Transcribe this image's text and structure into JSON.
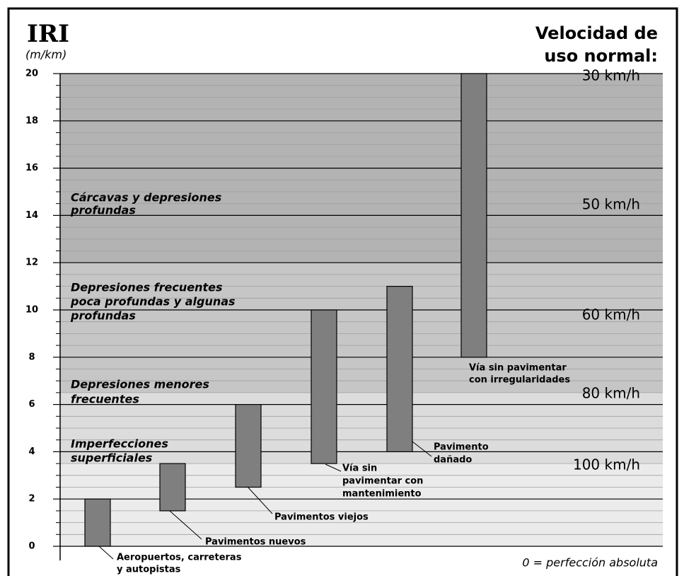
{
  "chart_data": {
    "type": "range_bar",
    "title": "IRI",
    "y_label": "(m/km)",
    "right_title": [
      "Velocidad de",
      "uso normal:"
    ],
    "footnote": "0 = perfección absoluta",
    "categories": [
      [
        "Aeropuertos, carreteras",
        "y autopistas"
      ],
      [
        "Pavimentos nuevos"
      ],
      [
        "Pavimentos viejos"
      ],
      [
        "Vía sin",
        "pavimentar  con",
        "mantenimiento"
      ],
      [
        "Pavimento",
        "dañado"
      ],
      [
        "Vía sin pavimentar",
        "con irregularidades"
      ]
    ],
    "lows": [
      0,
      1.5,
      2.5,
      3.5,
      4,
      8
    ],
    "highs": [
      2,
      3.5,
      6,
      10,
      11,
      20
    ],
    "color": "#7f7f7f",
    "ylim": [
      0,
      20
    ],
    "yticks": [
      0,
      2,
      4,
      6,
      8,
      10,
      12,
      14,
      16,
      18,
      20
    ],
    "yminorticks": [
      0.5,
      1,
      1.5,
      2.5,
      3,
      3.5,
      4.5,
      5,
      5.5,
      6.5,
      7,
      7.5,
      8.5,
      9,
      9.5,
      10.5,
      11,
      11.5,
      12.5,
      13,
      13.5,
      14.5,
      15,
      15.5,
      16.5,
      17,
      17.5,
      18.5,
      19,
      19.5
    ],
    "grid": true,
    "zones": [
      {
        "from": 0,
        "to": 3.5,
        "color": "#ebebeb",
        "label": [
          "Imperfecciones",
          "superficiales"
        ],
        "speed": "100 km/h"
      },
      {
        "from": 3.5,
        "to": 6.5,
        "color": "#dcdcdc",
        "label": [
          "Depresiones menores",
          "frecuentes"
        ],
        "speed": "80 km/h"
      },
      {
        "from": 6.5,
        "to": 12,
        "color": "#c6c6c6",
        "label": [
          "Depresiones frecuentes",
          "poca profundas y algunas",
          "profundas"
        ],
        "speed": "60 km/h"
      },
      {
        "from": 12,
        "to": 20,
        "color": "#b3b3b3",
        "label": [
          "Cárcavas y depresiones",
          "profundas"
        ],
        "speed": "50 km/h"
      }
    ],
    "top_speed": "30 km/h"
  }
}
